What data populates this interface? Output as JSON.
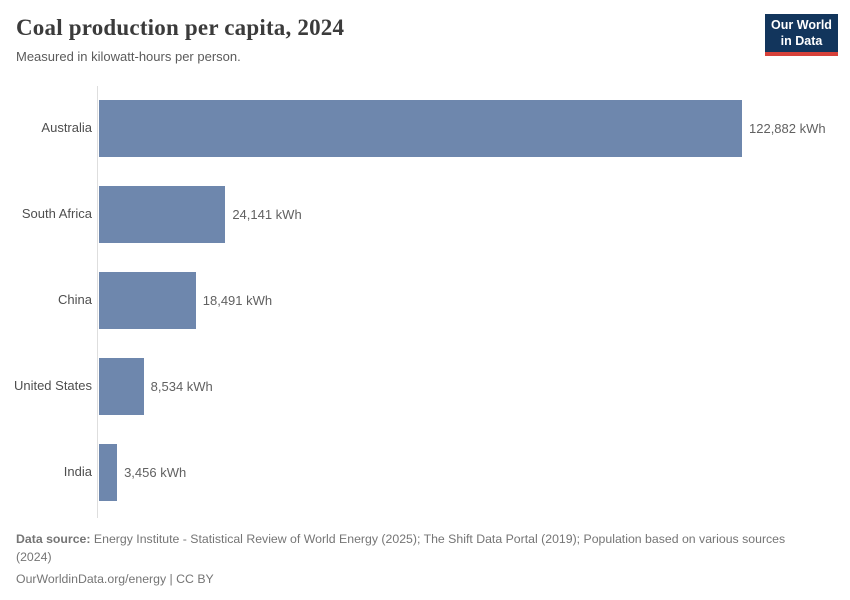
{
  "header": {
    "title": "Coal production per capita, 2024",
    "subtitle": "Measured in kilowatt-hours per person.",
    "logo": {
      "line1": "Our World",
      "line2": "in Data"
    }
  },
  "chart_data": {
    "type": "bar",
    "orientation": "horizontal",
    "title": "Coal production per capita, 2024",
    "subtitle": "Measured in kilowatt-hours per person.",
    "unit": "kWh",
    "categories": [
      "Australia",
      "South Africa",
      "China",
      "United States",
      "India"
    ],
    "values": [
      122882,
      24141,
      18491,
      8534,
      3456
    ],
    "value_labels": [
      "122,882 kWh",
      "24,141 kWh",
      "18,491 kWh",
      "8,534 kWh",
      "3,456 kWh"
    ],
    "xlim": [
      0,
      122882
    ],
    "grid": false,
    "legend": false,
    "bar_color": "#6e87ad"
  },
  "footer": {
    "source_label": "Data source:",
    "source_text": " Energy Institute - Statistical Review of World Energy (2025); The Shift Data Portal (2019); Population based on various sources (2024)",
    "note_text": "OurWorldinData.org/energy | CC BY"
  },
  "colors": {
    "bar": "#6e87ad",
    "axis_line": "#dedede",
    "title_text": "#3b3b3b",
    "subtitle_text": "#5b5b5b",
    "label_text": "#4e4e4e",
    "value_text": "#616161",
    "footer_text": "#757575",
    "logo_background": "#12355c",
    "logo_accent": "#d7413a"
  }
}
